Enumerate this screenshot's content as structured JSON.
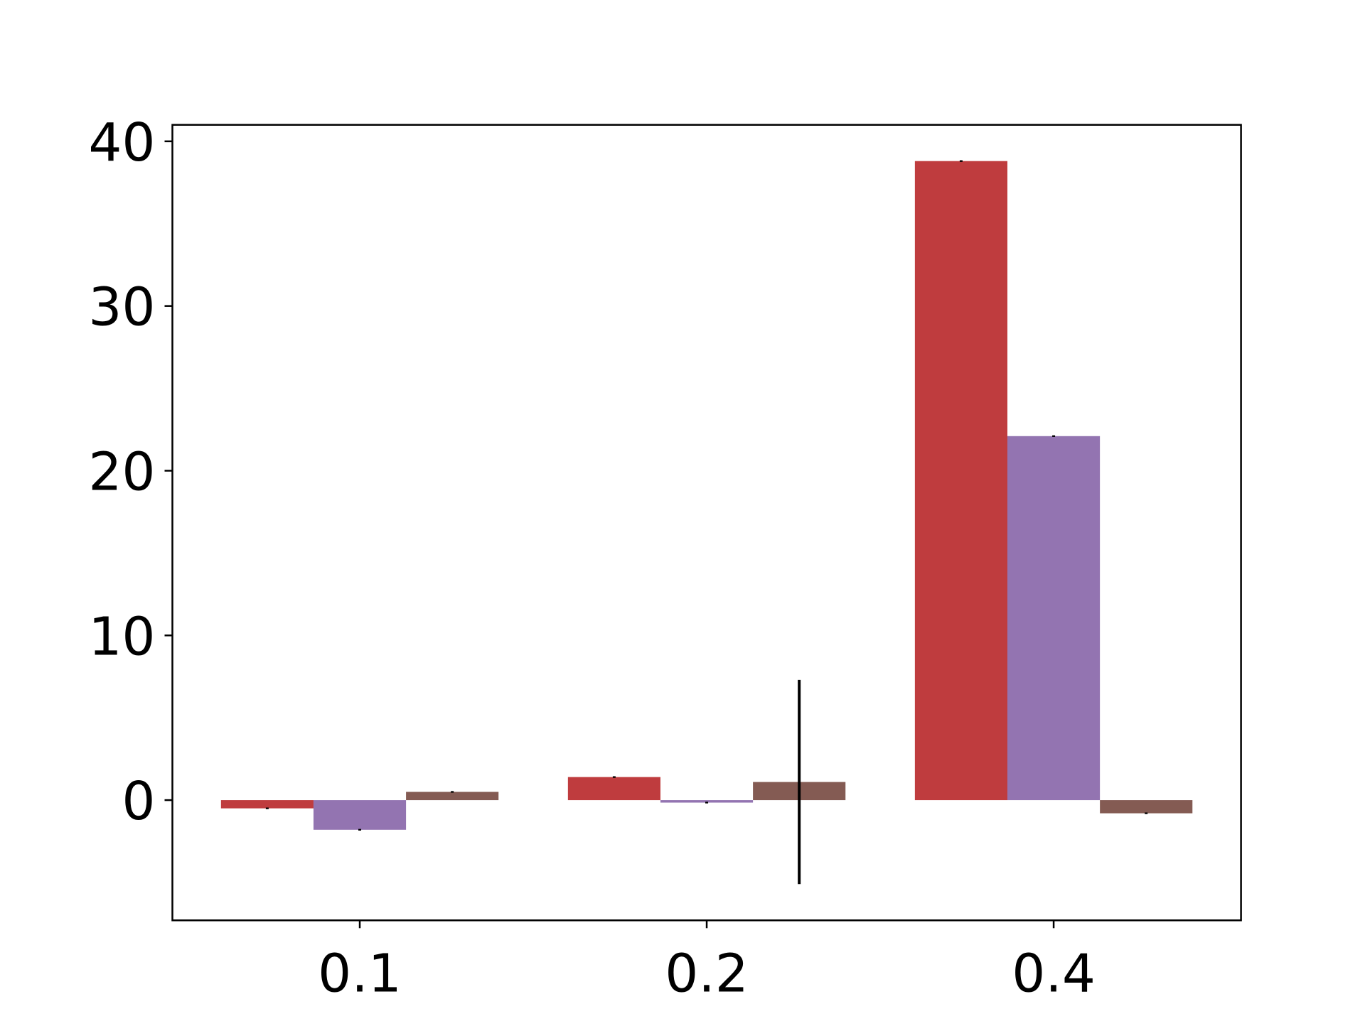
{
  "chart_data": {
    "type": "bar",
    "categories": [
      "0.1",
      "0.2",
      "0.4"
    ],
    "series": [
      {
        "color": "#bf3c3e",
        "values": [
          -0.5,
          1.4,
          38.8
        ],
        "errors": [
          0.05,
          0.05,
          0.05
        ]
      },
      {
        "color": "#9374b1",
        "values": [
          -1.8,
          -0.15,
          22.1
        ],
        "errors": [
          0.05,
          0.05,
          0.05
        ]
      },
      {
        "color": "#845b53",
        "values": [
          0.5,
          1.1,
          -0.8
        ],
        "errors": [
          0.05,
          6.2,
          0.05
        ]
      }
    ],
    "ylim": [
      -7.3,
      41.0
    ],
    "yticks": [
      0,
      10,
      20,
      30,
      40
    ],
    "error_color": "#000000"
  }
}
